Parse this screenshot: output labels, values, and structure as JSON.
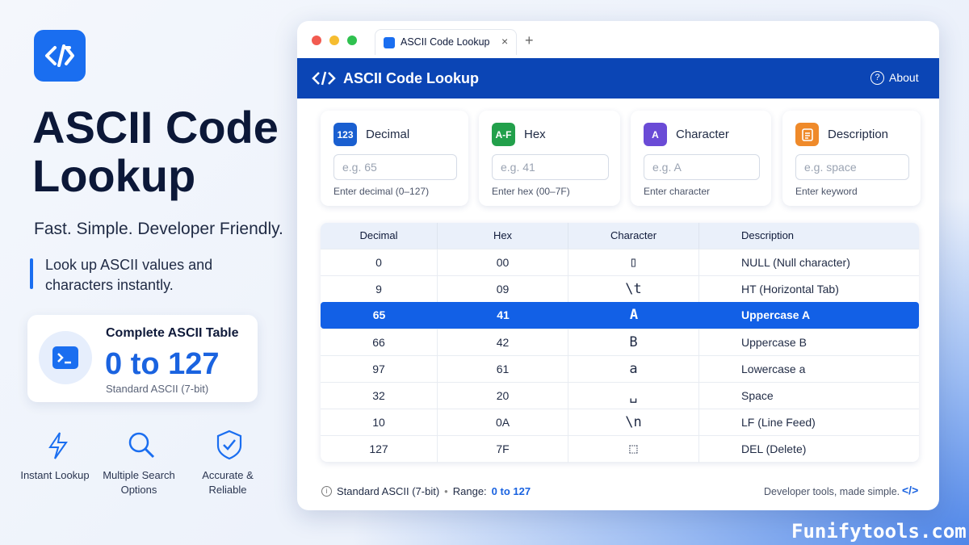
{
  "hero": {
    "title": "ASCII Code Lookup",
    "tagline": "Fast. Simple. Developer Friendly.",
    "description": "Look up ASCII values and characters instantly.",
    "card": {
      "title": "Complete ASCII Table",
      "range": "0 to 127",
      "note": "Standard ASCII (7-bit)"
    },
    "features": [
      "Instant Lookup",
      "Multiple Search Options",
      "Accurate & Reliable"
    ]
  },
  "browser": {
    "tab": "ASCII Code Lookup",
    "app_title": "ASCII Code Lookup",
    "about": "About",
    "search_fields": [
      {
        "icon": "123",
        "label": "Decimal",
        "placeholder": "e.g. 65",
        "hint": "Enter decimal (0–127)",
        "color": "#1a5fd0"
      },
      {
        "icon": "A-F",
        "label": "Hex",
        "placeholder": "e.g. 41",
        "hint": "Enter hex (00–7F)",
        "color": "#22a04b"
      },
      {
        "icon": "A",
        "label": "Character",
        "placeholder": "e.g. A",
        "hint": "Enter character",
        "color": "#6a4bd6"
      },
      {
        "label": "Description",
        "placeholder": "e.g. space",
        "hint": "Enter keyword",
        "color": "#ef8a2a"
      }
    ],
    "table": {
      "columns": [
        "Decimal",
        "Hex",
        "Character",
        "Description"
      ],
      "rows": [
        [
          "0",
          "00",
          "▯",
          "NULL (Null character)"
        ],
        [
          "9",
          "09",
          "\\t",
          "HT (Horizontal Tab)"
        ],
        [
          "65",
          "41",
          "A",
          "Uppercase A"
        ],
        [
          "66",
          "42",
          "B",
          "Uppercase B"
        ],
        [
          "97",
          "61",
          "a",
          "Lowercase a"
        ],
        [
          "32",
          "20",
          "␣",
          "Space"
        ],
        [
          "10",
          "0A",
          "\\n",
          "LF (Line Feed)"
        ],
        [
          "127",
          "7F",
          "⬚",
          "DEL (Delete)"
        ]
      ],
      "selected_row": 2
    },
    "footer": {
      "standard": "Standard ASCII (7-bit)",
      "separator": "•",
      "range_label": "Range:",
      "range": "0 to 127",
      "tagline": "Developer tools, made simple."
    }
  },
  "watermark": "Funifytools.com"
}
